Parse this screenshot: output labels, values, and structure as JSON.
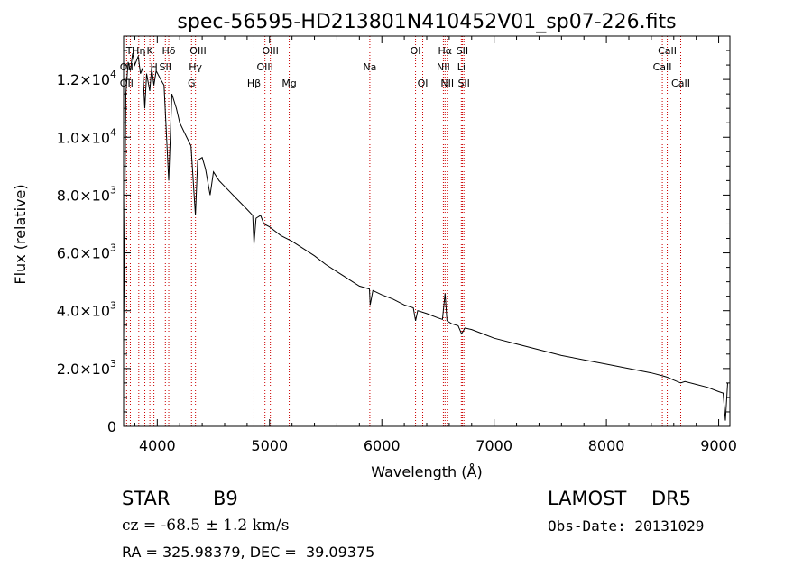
{
  "chart_data": {
    "type": "line",
    "title": "spec-56595-HD213801N410452V01_sp07-226.fits",
    "xlabel": "Wavelength (Å)",
    "ylabel": "Flux (relative)",
    "xlim": [
      3700,
      9100
    ],
    "ylim": [
      0,
      13500
    ],
    "x_ticks": [
      4000,
      5000,
      6000,
      7000,
      8000,
      9000
    ],
    "x_tick_labels": [
      "4000",
      "5000",
      "6000",
      "7000",
      "8000",
      "9000"
    ],
    "y_ticks": [
      0,
      2000,
      4000,
      6000,
      8000,
      10000,
      12000
    ],
    "y_tick_labels": [
      {
        "mantissa": "0",
        "exp": ""
      },
      {
        "mantissa": "2.0×10",
        "exp": "3"
      },
      {
        "mantissa": "4.0×10",
        "exp": "3"
      },
      {
        "mantissa": "6.0×10",
        "exp": "3"
      },
      {
        "mantissa": "8.0×10",
        "exp": "3"
      },
      {
        "mantissa": "1.0×10",
        "exp": "4"
      },
      {
        "mantissa": "1.2×10",
        "exp": "4"
      }
    ],
    "grid": false,
    "series": [
      {
        "color": "#000000",
        "x": [
          3700,
          3720,
          3740,
          3760,
          3780,
          3800,
          3830,
          3850,
          3870,
          3889,
          3905,
          3933,
          3950,
          3970,
          3990,
          4030,
          4060,
          4102,
          4130,
          4170,
          4200,
          4250,
          4300,
          4340,
          4360,
          4400,
          4430,
          4471,
          4500,
          4550,
          4600,
          4650,
          4700,
          4750,
          4800,
          4850,
          4861,
          4880,
          4920,
          4950,
          5000,
          5050,
          5100,
          5200,
          5300,
          5400,
          5500,
          5600,
          5700,
          5800,
          5890,
          5896,
          5920,
          6000,
          6100,
          6200,
          6280,
          6300,
          6320,
          6400,
          6500,
          6540,
          6563,
          6580,
          6620,
          6680,
          6710,
          6740,
          6800,
          6900,
          7000,
          7200,
          7400,
          7600,
          7800,
          8000,
          8200,
          8400,
          8498,
          8542,
          8600,
          8662,
          8700,
          8800,
          8900,
          9000,
          9040,
          9060,
          9080
        ],
        "y": [
          3000,
          11500,
          12600,
          12300,
          12900,
          12500,
          12800,
          12200,
          12400,
          11000,
          12200,
          11600,
          12400,
          11800,
          12300,
          12000,
          11800,
          8500,
          11500,
          11000,
          10500,
          10100,
          9700,
          7300,
          9200,
          9300,
          8900,
          8000,
          8800,
          8500,
          8300,
          8100,
          7900,
          7700,
          7500,
          7300,
          6300,
          7200,
          7300,
          7000,
          6900,
          6750,
          6600,
          6400,
          6150,
          5900,
          5600,
          5350,
          5100,
          4850,
          4750,
          4200,
          4700,
          4550,
          4400,
          4200,
          4100,
          3650,
          4000,
          3900,
          3750,
          3700,
          4600,
          3650,
          3550,
          3480,
          3200,
          3400,
          3350,
          3200,
          3050,
          2850,
          2650,
          2450,
          2300,
          2150,
          2000,
          1850,
          1750,
          1700,
          1600,
          1500,
          1550,
          1450,
          1350,
          1200,
          1150,
          200,
          1500
        ]
      }
    ],
    "line_labels": [
      {
        "text": "Ti",
        "wave": 3760,
        "row": 0
      },
      {
        "text": "Hη",
        "wave": 3835,
        "row": 0
      },
      {
        "text": "K",
        "wave": 3934,
        "row": 0
      },
      {
        "text": "Hδ",
        "wave": 4102,
        "row": 0
      },
      {
        "text": "OIII",
        "wave": 4363,
        "row": 0
      },
      {
        "text": "OIII",
        "wave": 5007,
        "row": 0
      },
      {
        "text": "OI",
        "wave": 6300,
        "row": 0
      },
      {
        "text": "Hα",
        "wave": 6563,
        "row": 0
      },
      {
        "text": "SII",
        "wave": 6717,
        "row": 0
      },
      {
        "text": "CaII",
        "wave": 8542,
        "row": 0
      },
      {
        "text": "OII",
        "wave": 3727,
        "row": 1
      },
      {
        "text": "H",
        "wave": 3970,
        "row": 1
      },
      {
        "text": "SII",
        "wave": 4072,
        "row": 1
      },
      {
        "text": "Hγ",
        "wave": 4340,
        "row": 1
      },
      {
        "text": "OIII",
        "wave": 4959,
        "row": 1
      },
      {
        "text": "Na",
        "wave": 5893,
        "row": 1
      },
      {
        "text": "NII",
        "wave": 6548,
        "row": 1
      },
      {
        "text": "Li",
        "wave": 6708,
        "row": 1
      },
      {
        "text": "CaII",
        "wave": 8498,
        "row": 1
      },
      {
        "text": "OII",
        "wave": 3727,
        "row": 2
      },
      {
        "text": "G",
        "wave": 4305,
        "row": 2
      },
      {
        "text": "Hβ",
        "wave": 4861,
        "row": 2
      },
      {
        "text": "Mg",
        "wave": 5175,
        "row": 2
      },
      {
        "text": "OI",
        "wave": 6364,
        "row": 2
      },
      {
        "text": "NII",
        "wave": 6583,
        "row": 2
      },
      {
        "text": "SII",
        "wave": 6731,
        "row": 2
      },
      {
        "text": "CaII",
        "wave": 8662,
        "row": 2
      }
    ],
    "line_markers": [
      3727,
      3760,
      3835,
      3889,
      3934,
      3970,
      4072,
      4102,
      4305,
      4340,
      4363,
      4861,
      4959,
      5007,
      5175,
      5893,
      6300,
      6364,
      6548,
      6563,
      6583,
      6708,
      6717,
      6731,
      8498,
      8542,
      8662
    ],
    "marker_color": "#cc0000"
  },
  "info": {
    "object_class": "STAR",
    "subclass": "B9",
    "survey": "LAMOST",
    "release": "DR5",
    "redshift": "cz = -68.5 ± 1.2 km/s",
    "obs_date": "Obs-Date: 20131029",
    "coords": "RA = 325.98379, DEC =  39.09375"
  }
}
